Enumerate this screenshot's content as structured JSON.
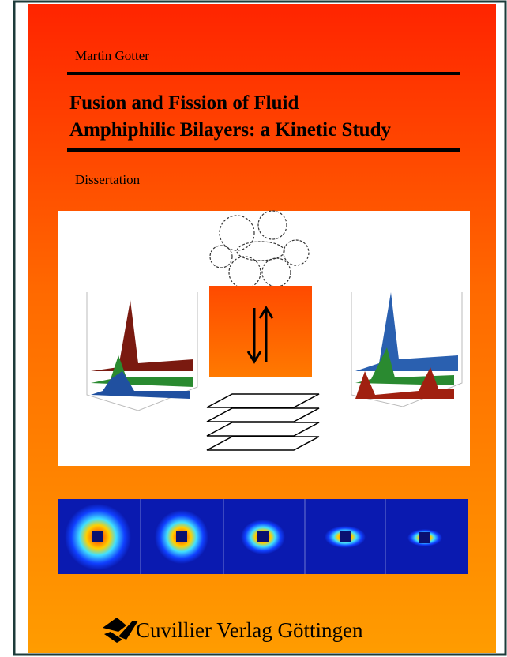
{
  "cover": {
    "author": "Martin Gotter",
    "title_lines": [
      "Fusion and Fission of Fluid",
      "Amphiphilic Bilayers: a Kinetic Study"
    ],
    "subtitle": "Dissertation",
    "publisher": "Cuvillier Verlag Göttingen"
  }
}
